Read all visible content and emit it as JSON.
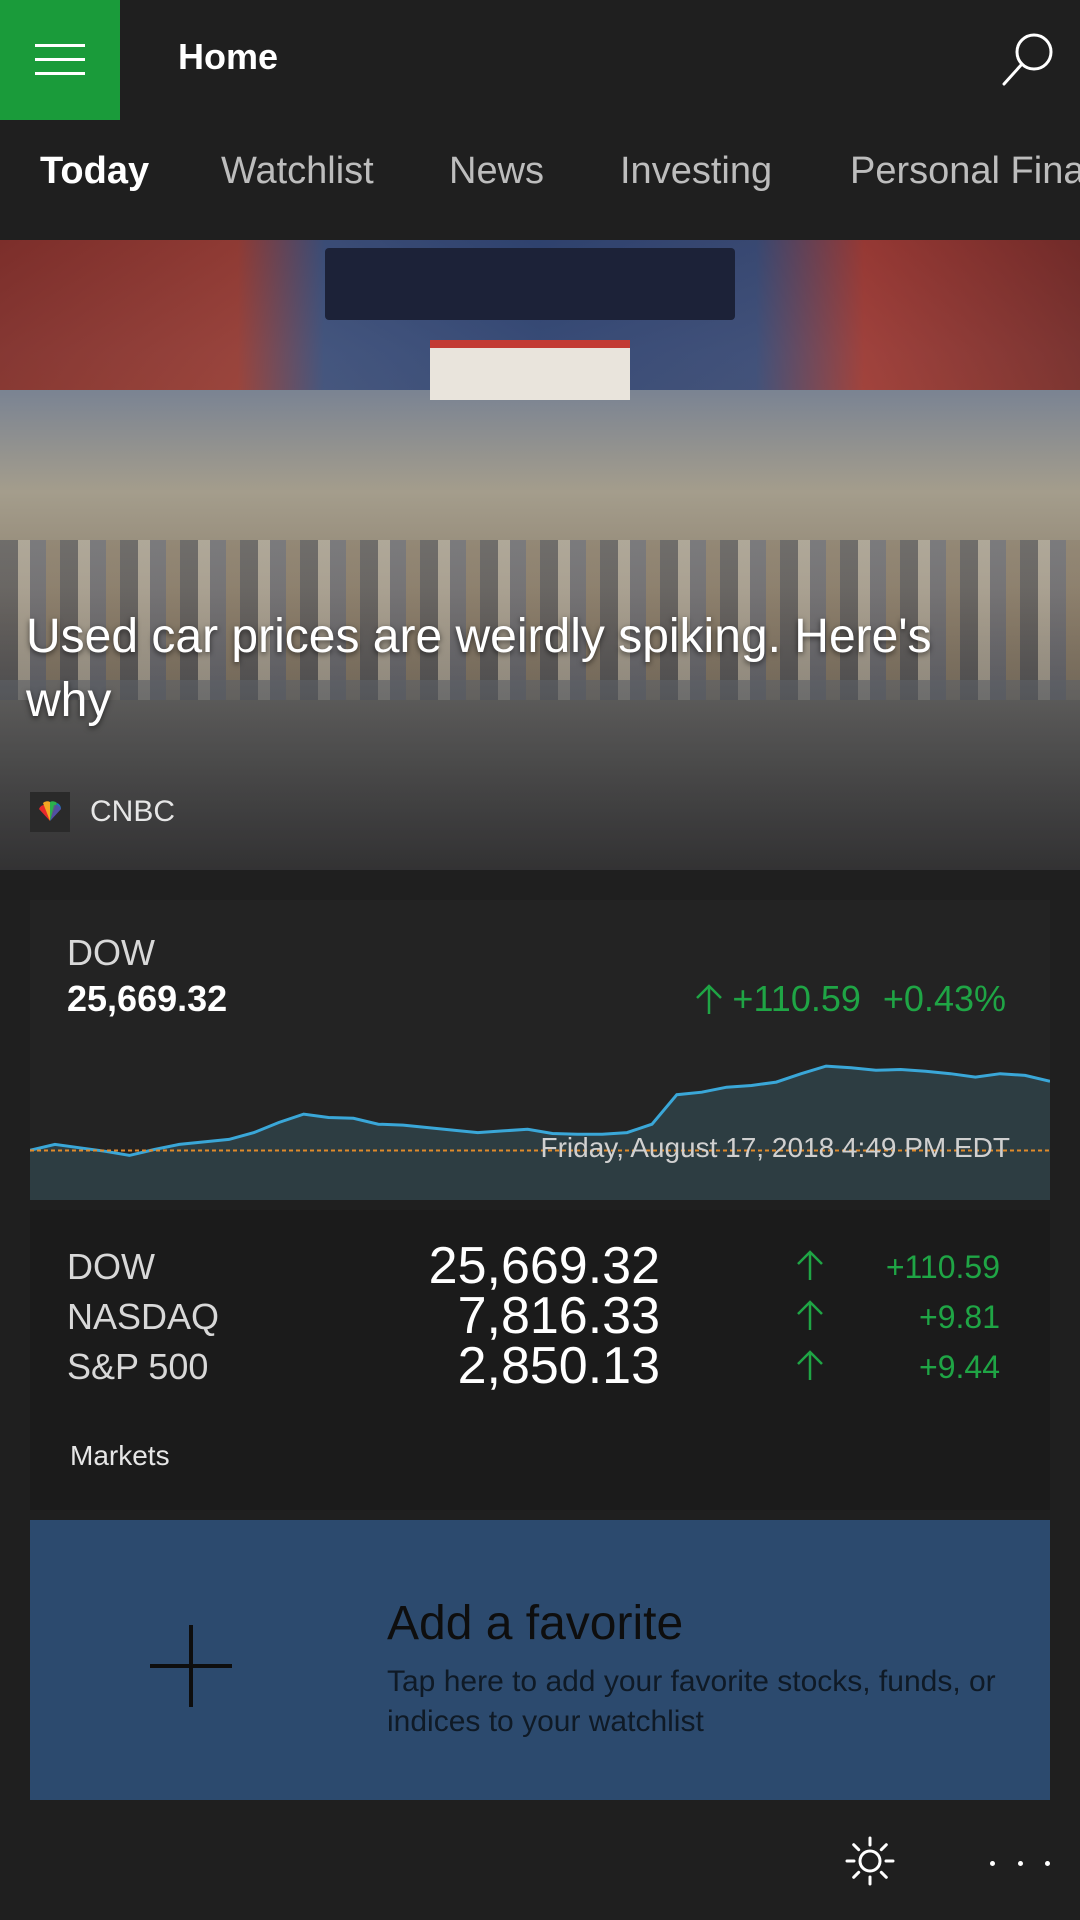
{
  "header": {
    "title": "Home",
    "accent_color": "#1a9b3a"
  },
  "tabs": [
    {
      "label": "Today",
      "active": true
    },
    {
      "label": "Watchlist",
      "active": false
    },
    {
      "label": "News",
      "active": false
    },
    {
      "label": "Investing",
      "active": false
    },
    {
      "label": "Personal Finan",
      "active": false
    }
  ],
  "hero": {
    "headline": "Used car prices are weirdly spiking. Here's why",
    "source": "CNBC"
  },
  "chart_card": {
    "name": "DOW",
    "value": "25,669.32",
    "change": "+110.59",
    "change_pct": "+0.43%",
    "timestamp": "Friday, August 17, 2018 4:49 PM EDT",
    "up_color": "#1fa545",
    "line_color": "#3aa7d8",
    "baseline_color": "#e08a2b"
  },
  "chart_data": {
    "type": "area",
    "series": [
      {
        "values": [
          25559,
          25566,
          25562,
          25558,
          25553,
          25560,
          25566,
          25569,
          25572,
          25580,
          25592,
          25602,
          25598,
          25597,
          25590,
          25589,
          25586,
          25583,
          25580,
          25582,
          25584,
          25579,
          25578,
          25578,
          25580,
          25590,
          25625,
          25628,
          25634,
          25636,
          25640,
          25650,
          25659,
          25657,
          25654,
          25655,
          25653,
          25650,
          25646,
          25650,
          25648,
          25641
        ]
      }
    ],
    "baseline": 25558.73
  },
  "markets": {
    "rows": [
      {
        "name": "DOW",
        "value": "25,669.32",
        "change": "+110.59"
      },
      {
        "name": "NASDAQ",
        "value": "7,816.33",
        "change": "+9.81"
      },
      {
        "name": "S&P 500",
        "value": "2,850.13",
        "change": "+9.44"
      }
    ],
    "link": "Markets"
  },
  "favorite": {
    "title": "Add a favorite",
    "description": "Tap here to add your favorite stocks, funds, or indices to your watchlist",
    "bg_color": "#2c4a6e"
  },
  "bottombar": {
    "icons": [
      "sun-icon",
      "more-icon"
    ]
  }
}
